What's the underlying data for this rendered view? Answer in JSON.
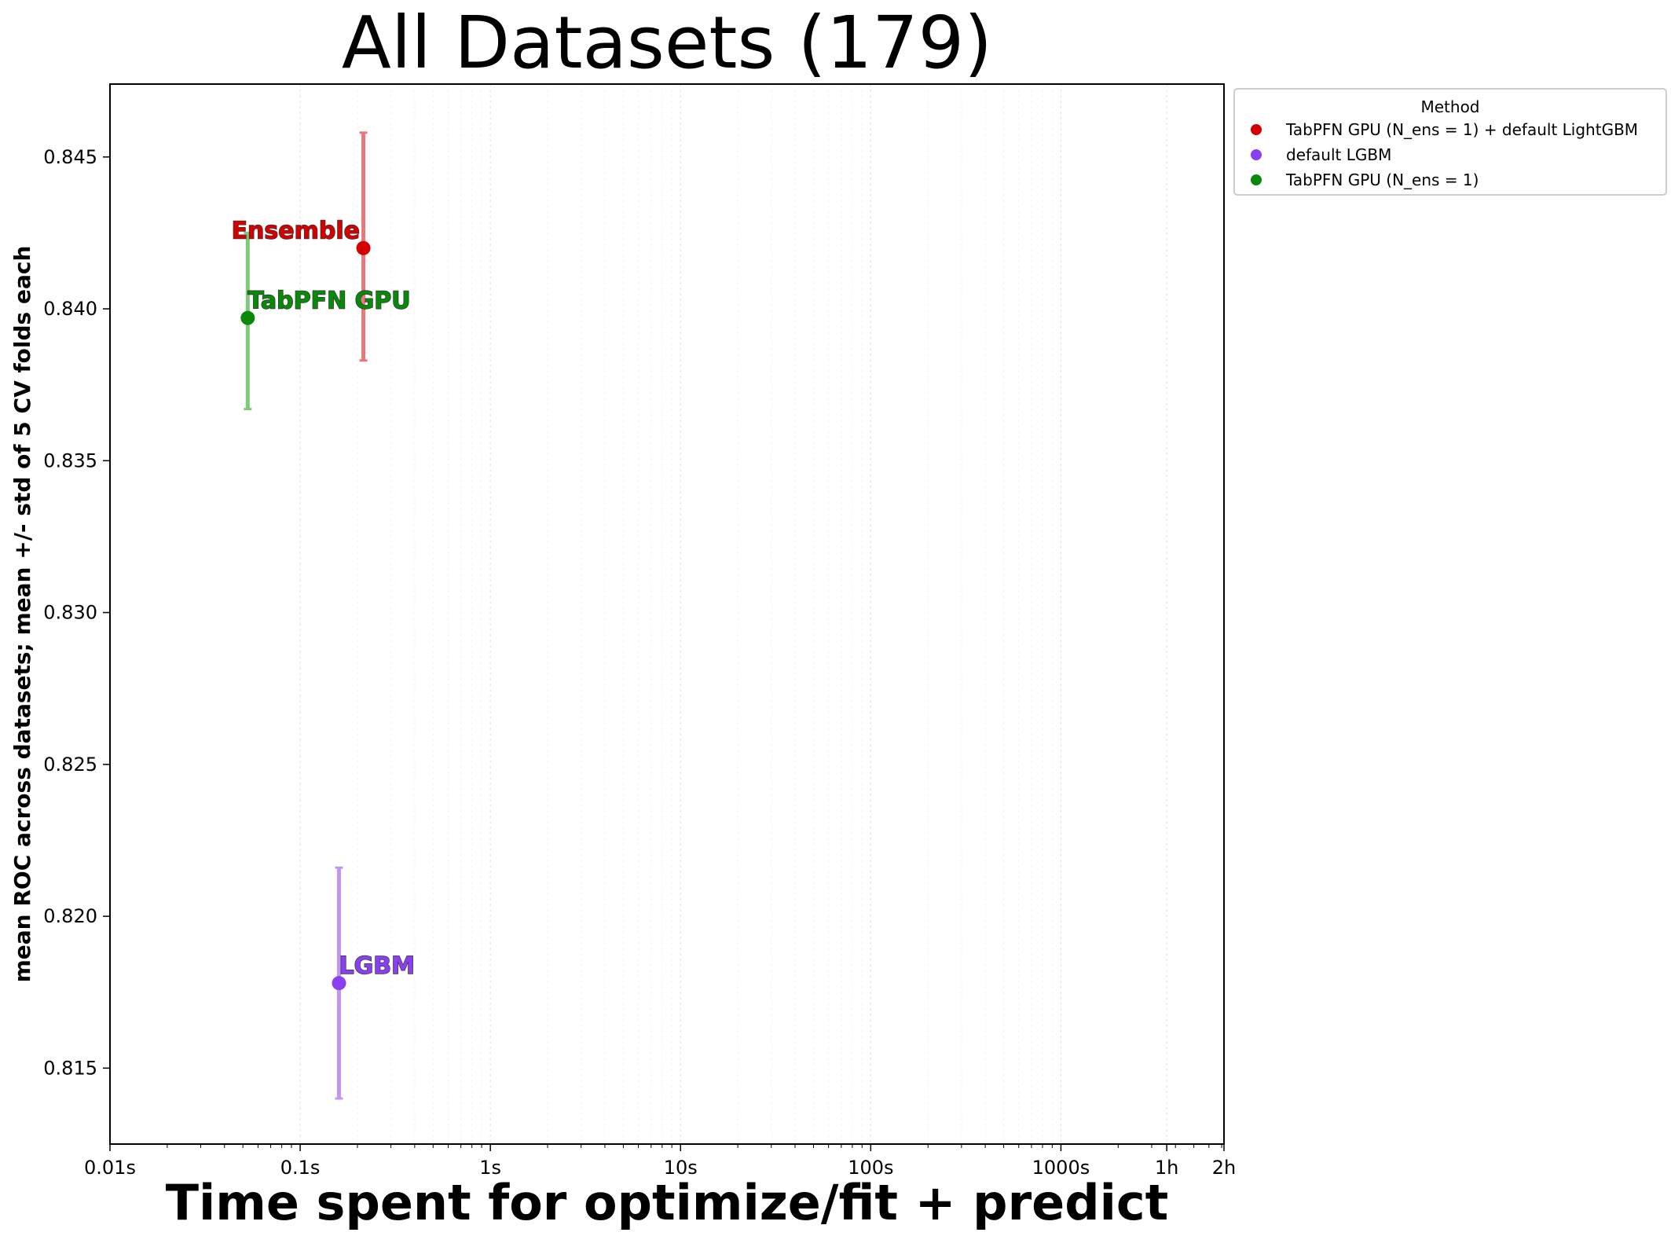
{
  "chart_data": {
    "type": "scatter",
    "title": "All Datasets (179)",
    "xlabel": "Time spent for optimize/fit + predict",
    "ylabel": "mean ROC across datasets; mean +/- std of 5 CV folds each",
    "x_scale": "log",
    "x_ticks": [
      {
        "value": 0.01,
        "label": "0.01s"
      },
      {
        "value": 0.1,
        "label": "0.1s"
      },
      {
        "value": 1,
        "label": "1s"
      },
      {
        "value": 10,
        "label": "10s"
      },
      {
        "value": 100,
        "label": "100s"
      },
      {
        "value": 1000,
        "label": "1000s"
      },
      {
        "value": 3600,
        "label": "1h"
      },
      {
        "value": 7200,
        "label": "2h"
      }
    ],
    "y_ticks": [
      {
        "value": 0.815,
        "label": "0.815"
      },
      {
        "value": 0.82,
        "label": "0.820"
      },
      {
        "value": 0.825,
        "label": "0.825"
      },
      {
        "value": 0.83,
        "label": "0.830"
      },
      {
        "value": 0.835,
        "label": "0.835"
      },
      {
        "value": 0.84,
        "label": "0.840"
      },
      {
        "value": 0.845,
        "label": "0.845"
      }
    ],
    "xlim": [
      0.01,
      7200
    ],
    "ylim": [
      0.8125,
      0.8474
    ],
    "grid": "vertical-only",
    "legend": {
      "title": "Method",
      "placement": "outside-top-right"
    },
    "series": [
      {
        "name": "TabPFN GPU (N_ens =  1) + default LightGBM",
        "label": "Ensemble",
        "color": "#d40000",
        "bar_color": "#e8777b",
        "x": 0.215,
        "y": 0.842,
        "y_low": 0.8383,
        "y_high": 0.8458
      },
      {
        "name": "default LGBM",
        "label": "LGBM",
        "color": "#8a3ff0",
        "bar_color": "#c496f4",
        "x": 0.16,
        "y": 0.8178,
        "y_low": 0.814,
        "y_high": 0.8216
      },
      {
        "name": "TabPFN GPU (N_ens =  1)",
        "label": "TabPFN GPU",
        "color": "#098909",
        "bar_color": "#7fc97a",
        "x": 0.053,
        "y": 0.8397,
        "y_low": 0.8367,
        "y_high": 0.8425
      }
    ]
  }
}
